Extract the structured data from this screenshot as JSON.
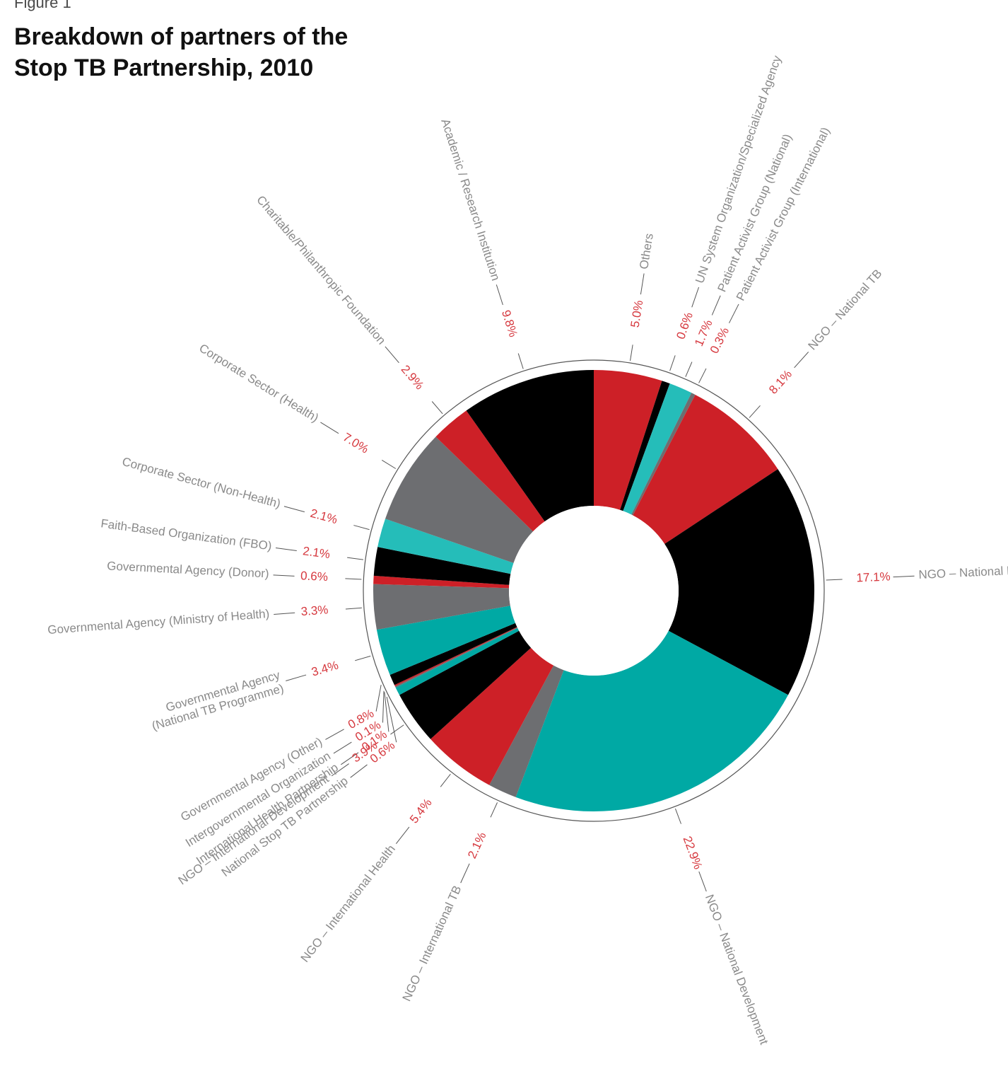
{
  "figure_label": "Figure 1",
  "title_lines": [
    "Breakdown of partners of the",
    "Stop TB Partnership, 2010"
  ],
  "colors": {
    "red": "#cd2027",
    "black": "#000000",
    "gray": "#6d6e71",
    "teal": "#00a9a4",
    "light_teal": "#25bdb9",
    "label": "#8a8a8a",
    "value": "#d6393f"
  },
  "chart_data": {
    "type": "pie",
    "style": "donut",
    "title": "Breakdown of partners of the Stop TB Partnership, 2010",
    "unit": "%",
    "slices": [
      {
        "label": "Others",
        "value": 5.0,
        "value_label": "5.0%",
        "color": "#cd2027"
      },
      {
        "label": "UN System Organization/Specialized Agency",
        "value": 0.6,
        "value_label": "0.6%",
        "color": "#000000"
      },
      {
        "label": "Patient Activist Group (National)",
        "value": 1.7,
        "value_label": "1.7%",
        "color": "#25bdb9"
      },
      {
        "label": "Patient Activist Group (International)",
        "value": 0.3,
        "value_label": "0.3%",
        "color": "#6d6e71"
      },
      {
        "label": "NGO – National TB",
        "value": 8.1,
        "value_label": "8.1%",
        "color": "#cd2027"
      },
      {
        "label": "NGO – National Health",
        "value": 17.1,
        "value_label": "17.1%",
        "color": "#000000"
      },
      {
        "label": "NGO – National Development",
        "value": 22.9,
        "value_label": "22.9%",
        "color": "#00a9a4"
      },
      {
        "label": "NGO – International TB",
        "value": 2.1,
        "value_label": "2.1%",
        "color": "#6d6e71"
      },
      {
        "label": "NGO – International Health",
        "value": 5.4,
        "value_label": "5.4%",
        "color": "#cd2027"
      },
      {
        "label": "NGO – International Development",
        "value": 3.9,
        "value_label": "3.9%",
        "color": "#000000"
      },
      {
        "label": "National Stop TB Partnership",
        "value": 0.6,
        "value_label": "0.6%",
        "color": "#00a9a4"
      },
      {
        "label": "International Health Partnership",
        "value": 0.1,
        "value_label": "0.1%",
        "color": "#6d6e71"
      },
      {
        "label": "Intergovernmental Organization",
        "value": 0.1,
        "value_label": "0.1%",
        "color": "#cd2027"
      },
      {
        "label": "Governmental Agency (Other)",
        "value": 0.8,
        "value_label": "0.8%",
        "color": "#000000"
      },
      {
        "label": "Governmental Agency (National TB Programme)",
        "label_lines": [
          "Governmental Agency",
          "(National TB Programme)"
        ],
        "value": 3.4,
        "value_label": "3.4%",
        "color": "#00a9a4"
      },
      {
        "label": "Governmental Agency (Ministry of Health)",
        "value": 3.3,
        "value_label": "3.3%",
        "color": "#6d6e71"
      },
      {
        "label": "Governmental Agency (Donor)",
        "value": 0.6,
        "value_label": "0.6%",
        "color": "#cd2027"
      },
      {
        "label": "Faith-Based Organization (FBO)",
        "value": 2.1,
        "value_label": "2.1%",
        "color": "#000000"
      },
      {
        "label": "Corporate Sector (Non-Health)",
        "value": 2.1,
        "value_label": "2.1%",
        "color": "#25bdb9"
      },
      {
        "label": "Corporate Sector (Health)",
        "value": 7.0,
        "value_label": "7.0%",
        "color": "#6d6e71"
      },
      {
        "label": "Charitable/Philanthropic Foundation",
        "value": 2.9,
        "value_label": "2.9%",
        "color": "#cd2027"
      },
      {
        "label": "Academic / Research Institution",
        "value": 9.8,
        "value_label": "9.8%",
        "color": "#000000"
      }
    ]
  }
}
